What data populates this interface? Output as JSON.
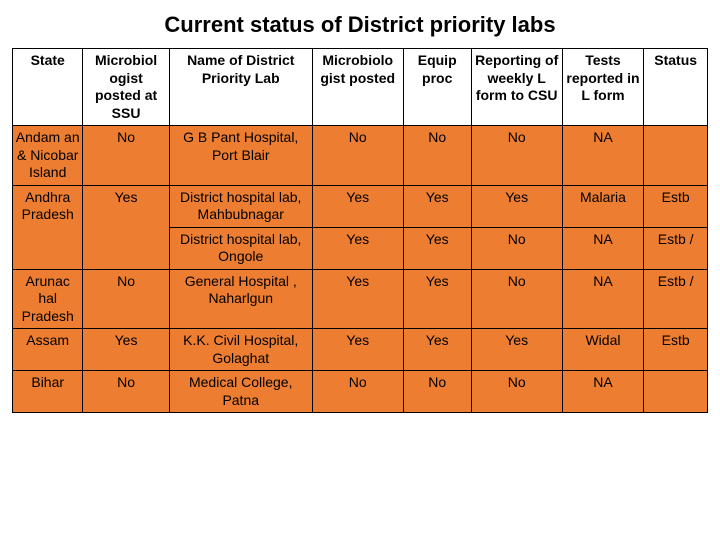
{
  "title": "Current status of District priority labs",
  "headers": {
    "state": "State",
    "microbiologist_ssu": "Microbiol ogist posted at SSU",
    "lab_name": "Name of District Priority Lab",
    "microbiologist_posted": "Microbiolo gist posted",
    "equip_proc": "Equip proc",
    "reporting": "Reporting of weekly L form to CSU",
    "tests": "Tests reported in L form",
    "status": "Status"
  },
  "rows": [
    {
      "state": "Andam an & Nicobar Island",
      "ssu": "No",
      "lab": "G B Pant Hospital, Port Blair",
      "posted": "No",
      "equip": "No",
      "rep": "No",
      "tests": "NA",
      "status": ""
    },
    {
      "state": "Andhra Pradesh",
      "ssu": "Yes",
      "lab": "District hospital lab, Mahbubnagar",
      "posted": "Yes",
      "equip": "Yes",
      "rep": "Yes",
      "tests": "Malaria",
      "status": "Estb"
    },
    {
      "state": "",
      "ssu": "",
      "lab": "District hospital lab, Ongole",
      "posted": "Yes",
      "equip": "Yes",
      "rep": "No",
      "tests": "NA",
      "status": "Estb /"
    },
    {
      "state": "Arunac hal Pradesh",
      "ssu": "No",
      "lab": "General Hospital , Naharlgun",
      "posted": "Yes",
      "equip": "Yes",
      "rep": "No",
      "tests": "NA",
      "status": "Estb /"
    },
    {
      "state": "Assam",
      "ssu": "Yes",
      "lab": "K.K. Civil Hospital, Golaghat",
      "posted": "Yes",
      "equip": "Yes",
      "rep": "Yes",
      "tests": "Widal",
      "status": "Estb"
    },
    {
      "state": "Bihar",
      "ssu": "No",
      "lab": "Medical College, Patna",
      "posted": "No",
      "equip": "No",
      "rep": "No",
      "tests": "NA",
      "status": ""
    }
  ],
  "rowspans": {
    "1": {
      "state": 2,
      "ssu": 2
    }
  },
  "style": {
    "row_bg": "#ed7d31",
    "border_color": "#000000",
    "title_fontsize": 22,
    "cell_fontsize": 14
  }
}
